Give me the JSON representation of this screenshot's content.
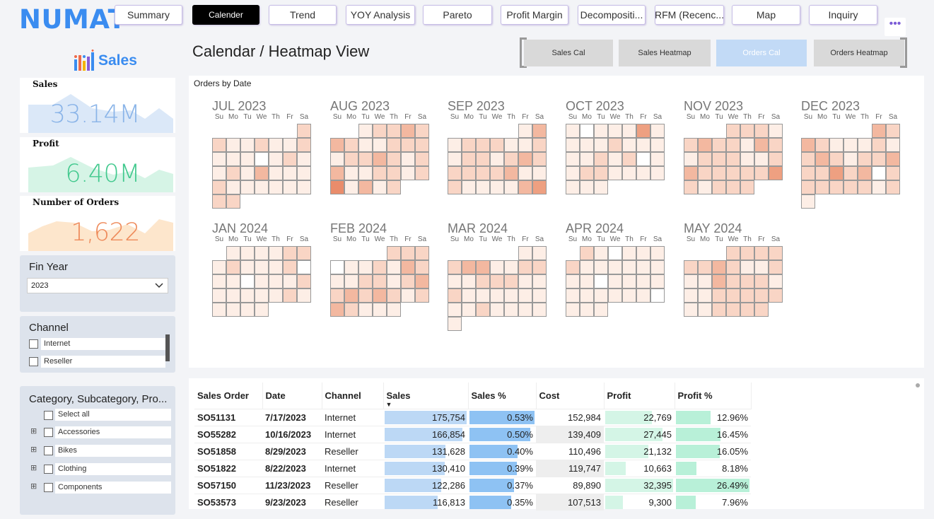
{
  "app": {
    "logo": "NUMAT"
  },
  "nav": [
    {
      "label": "Summary",
      "active": false
    },
    {
      "label": "Calender",
      "active": true
    },
    {
      "label": "Trend",
      "active": false
    },
    {
      "label": "YOY Analysis",
      "active": false
    },
    {
      "label": "Pareto",
      "active": false
    },
    {
      "label": "Profit Margin",
      "active": false
    },
    {
      "label": "Decompositi...",
      "active": false
    },
    {
      "label": "RFM (Recenc...",
      "active": false
    },
    {
      "label": "Map",
      "active": false
    },
    {
      "label": "Inquiry",
      "active": false
    }
  ],
  "more_label": "•••",
  "brand": {
    "label": "Sales"
  },
  "kpis": [
    {
      "label": "Sales",
      "value": "33.14M",
      "color": "#8ab4e8",
      "fill": "#dbe8f8"
    },
    {
      "label": "Profit",
      "value": "6.40M",
      "color": "#42c98e",
      "fill": "#d6f4e6"
    },
    {
      "label": "Number of Orders",
      "value": "1,622",
      "color": "#ee8a5a",
      "fill": "#fde6cc"
    }
  ],
  "fin_year": {
    "title": "Fin Year",
    "selected": "2023"
  },
  "channel": {
    "title": "Channel",
    "options": [
      "Internet",
      "Reseller"
    ]
  },
  "category": {
    "title": "Category, Subcategory, Pro...",
    "options": [
      "Select all",
      "Accessories",
      "Bikes",
      "Clothing",
      "Components"
    ]
  },
  "page_title": "Calendar / Heatmap View",
  "toggles": [
    {
      "label": "Sales Cal",
      "active": false
    },
    {
      "label": "Sales Heatmap",
      "active": false
    },
    {
      "label": "Orders Cal",
      "active": true
    },
    {
      "label": "Orders Heatmap",
      "active": false
    }
  ],
  "calendar": {
    "title": "Orders by Date",
    "dow": [
      "Su",
      "Mo",
      "Tu",
      "We",
      "Th",
      "Fr",
      "Sa"
    ],
    "months": [
      {
        "name": "JUL 2023",
        "start": 6,
        "days": 31,
        "levels": [
          2,
          2,
          1,
          1,
          2,
          1,
          1,
          2,
          1,
          1,
          1,
          0,
          1,
          2,
          1,
          1,
          2,
          1,
          3,
          1,
          1,
          1,
          2,
          1,
          1,
          1,
          1,
          1,
          1,
          2,
          2
        ]
      },
      {
        "name": "AUG 2023",
        "start": 2,
        "days": 31,
        "levels": [
          1,
          2,
          2,
          3,
          2,
          3,
          2,
          1,
          1,
          2,
          2,
          2,
          1,
          2,
          2,
          3,
          2,
          1,
          2,
          3,
          1,
          1,
          2,
          2,
          1,
          2,
          5,
          1,
          3,
          1,
          2
        ]
      },
      {
        "name": "SEP 2023",
        "start": 5,
        "days": 30,
        "levels": [
          1,
          3,
          1,
          2,
          2,
          2,
          1,
          1,
          2,
          1,
          2,
          2,
          1,
          2,
          3,
          2,
          2,
          2,
          2,
          2,
          3,
          1,
          1,
          2,
          1,
          1,
          1,
          1,
          3,
          4
        ]
      },
      {
        "name": "OCT 2023",
        "start": 0,
        "days": 31,
        "levels": [
          1,
          0,
          1,
          1,
          1,
          4,
          1,
          1,
          1,
          1,
          2,
          1,
          1,
          1,
          1,
          1,
          2,
          1,
          2,
          0,
          1,
          1,
          2,
          2,
          1,
          1,
          1,
          1,
          1,
          1,
          1
        ]
      },
      {
        "name": "NOV 2023",
        "start": 3,
        "days": 30,
        "levels": [
          2,
          2,
          2,
          1,
          2,
          3,
          2,
          2,
          1,
          3,
          2,
          1,
          2,
          2,
          2,
          1,
          1,
          2,
          3,
          2,
          2,
          2,
          2,
          2,
          4,
          2,
          1,
          2,
          2,
          2
        ]
      },
      {
        "name": "DEC 2023",
        "start": 5,
        "days": 31,
        "levels": [
          3,
          2,
          3,
          2,
          1,
          1,
          1,
          2,
          1,
          2,
          3,
          2,
          1,
          2,
          2,
          3,
          2,
          2,
          4,
          2,
          3,
          0,
          2,
          2,
          2,
          2,
          2,
          2,
          1,
          2,
          1
        ]
      },
      {
        "name": "JAN 2024",
        "start": 1,
        "days": 31,
        "levels": [
          1,
          1,
          1,
          1,
          2,
          2,
          1,
          2,
          1,
          1,
          1,
          2,
          0,
          1,
          1,
          0,
          1,
          1,
          1,
          2,
          1,
          1,
          1,
          1,
          1,
          2,
          1,
          1,
          1,
          1,
          1
        ]
      },
      {
        "name": "FEB 2024",
        "start": 4,
        "days": 29,
        "levels": [
          2,
          2,
          2,
          0,
          1,
          1,
          2,
          1,
          3,
          2,
          1,
          1,
          2,
          2,
          1,
          2,
          3,
          2,
          3,
          2,
          3,
          2,
          1,
          2,
          3,
          2,
          1,
          1,
          1
        ]
      },
      {
        "name": "MAR 2024",
        "start": 5,
        "days": 31,
        "levels": [
          1,
          1,
          2,
          3,
          3,
          1,
          1,
          2,
          2,
          1,
          1,
          2,
          2,
          2,
          1,
          1,
          2,
          1,
          1,
          1,
          1,
          1,
          1,
          1,
          1,
          2,
          1,
          1,
          1,
          1,
          1
        ]
      },
      {
        "name": "APR 2024",
        "start": 1,
        "days": 30,
        "levels": [
          2,
          1,
          0,
          1,
          1,
          1,
          2,
          1,
          1,
          1,
          1,
          1,
          1,
          1,
          1,
          0,
          1,
          1,
          1,
          1,
          1,
          1,
          1,
          1,
          1,
          1,
          0,
          1,
          1,
          1
        ]
      },
      {
        "name": "MAY 2024",
        "start": 3,
        "days": 31,
        "levels": [
          2,
          2,
          2,
          2,
          2,
          2,
          3,
          2,
          1,
          1,
          2,
          1,
          1,
          3,
          2,
          2,
          2,
          1,
          1,
          1,
          2,
          2,
          2,
          2,
          2,
          1,
          1,
          2,
          2,
          2,
          2
        ]
      }
    ],
    "palette": [
      "#ffffff",
      "#fdeee6",
      "#f9d5c5",
      "#f3b8a0",
      "#eea081",
      "#e98c6b"
    ]
  },
  "table": {
    "headers": [
      "Sales Order",
      "Date",
      "Channel",
      "Sales",
      "Sales %",
      "Cost",
      "Profit",
      "Profit %"
    ],
    "rows": [
      {
        "order": "SO51131",
        "date": "7/17/2023",
        "channel": "Internet",
        "sales": "175,754",
        "sales_pct": "0.53%",
        "cost": "152,984",
        "profit": "22,769",
        "profit_pct": "12.96%",
        "sales_frac": 1.0,
        "pct_frac": 1.0,
        "profit_frac": 0.7,
        "ppct_frac": 0.49
      },
      {
        "order": "SO55282",
        "date": "10/16/2023",
        "channel": "Internet",
        "sales": "166,854",
        "sales_pct": "0.50%",
        "cost": "139,409",
        "profit": "27,445",
        "profit_pct": "16.45%",
        "sales_frac": 0.95,
        "pct_frac": 0.94,
        "profit_frac": 0.85,
        "ppct_frac": 0.62
      },
      {
        "order": "SO51858",
        "date": "8/29/2023",
        "channel": "Reseller",
        "sales": "131,628",
        "sales_pct": "0.40%",
        "cost": "110,496",
        "profit": "21,132",
        "profit_pct": "16.05%",
        "sales_frac": 0.75,
        "pct_frac": 0.75,
        "profit_frac": 0.65,
        "ppct_frac": 0.61
      },
      {
        "order": "SO51822",
        "date": "8/22/2023",
        "channel": "Internet",
        "sales": "130,410",
        "sales_pct": "0.39%",
        "cost": "119,747",
        "profit": "10,663",
        "profit_pct": "8.18%",
        "sales_frac": 0.74,
        "pct_frac": 0.74,
        "profit_frac": 0.33,
        "ppct_frac": 0.31
      },
      {
        "order": "SO57150",
        "date": "11/23/2023",
        "channel": "Reseller",
        "sales": "122,286",
        "sales_pct": "0.37%",
        "cost": "89,890",
        "profit": "32,395",
        "profit_pct": "26.49%",
        "sales_frac": 0.7,
        "pct_frac": 0.7,
        "profit_frac": 1.0,
        "ppct_frac": 1.0
      },
      {
        "order": "SO53573",
        "date": "9/23/2023",
        "channel": "Reseller",
        "sales": "116,813",
        "sales_pct": "0.35%",
        "cost": "107,513",
        "profit": "9,300",
        "profit_pct": "7.96%",
        "sales_frac": 0.66,
        "pct_frac": 0.66,
        "profit_frac": 0.29,
        "ppct_frac": 0.3
      }
    ]
  }
}
